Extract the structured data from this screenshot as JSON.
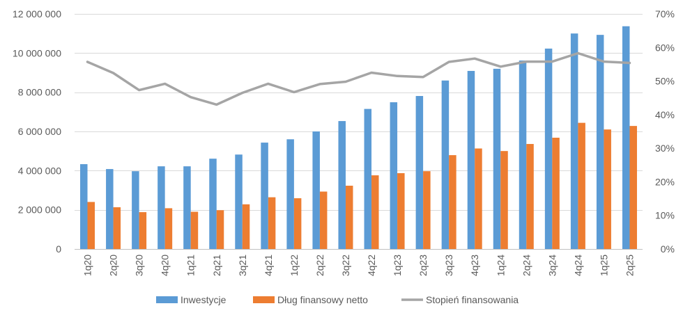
{
  "chart_data": {
    "type": "bar",
    "categories": [
      "1q20",
      "2q20",
      "3q20",
      "4q20",
      "1q21",
      "2q21",
      "3q21",
      "4q21",
      "1q22",
      "2q22",
      "3q22",
      "4q22",
      "1q23",
      "2q23",
      "3q23",
      "4q23",
      "1q24",
      "2q24",
      "3q24",
      "4q24",
      "1q25",
      "2q25"
    ],
    "series": [
      {
        "name": "Inwestycje",
        "type": "bar",
        "axis": "left",
        "color": "#5b9bd5",
        "values": [
          4330000,
          4080000,
          3970000,
          4220000,
          4220000,
          4610000,
          4820000,
          5430000,
          5600000,
          6000000,
          6530000,
          7150000,
          7490000,
          7810000,
          8600000,
          9090000,
          9200000,
          9620000,
          10230000,
          11000000,
          10930000,
          11370000
        ]
      },
      {
        "name": "Dług finansowy netto",
        "type": "bar",
        "axis": "left",
        "color": "#ed7d31",
        "values": [
          2400000,
          2130000,
          1880000,
          2080000,
          1900000,
          1980000,
          2280000,
          2640000,
          2590000,
          2930000,
          3230000,
          3760000,
          3870000,
          3970000,
          4790000,
          5130000,
          5000000,
          5360000,
          5680000,
          6440000,
          6100000,
          6280000
        ]
      },
      {
        "name": "Stopień finansowania",
        "type": "line",
        "axis": "right",
        "color": "#a5a5a5",
        "values": [
          0.557,
          0.524,
          0.473,
          0.492,
          0.452,
          0.43,
          0.465,
          0.492,
          0.467,
          0.491,
          0.498,
          0.525,
          0.515,
          0.512,
          0.557,
          0.567,
          0.543,
          0.558,
          0.558,
          0.583,
          0.558,
          0.554
        ]
      }
    ],
    "y_left": {
      "ylim": [
        0,
        12000000
      ],
      "ticks": [
        0,
        2000000,
        4000000,
        6000000,
        8000000,
        10000000,
        12000000
      ],
      "tick_labels": [
        "0",
        "2 000 000",
        "4 000 000",
        "6 000 000",
        "8 000 000",
        "10 000 000",
        "12 000 000"
      ]
    },
    "y_right": {
      "ylim": [
        0,
        0.7
      ],
      "ticks": [
        0,
        0.1,
        0.2,
        0.3,
        0.4,
        0.5,
        0.6,
        0.7
      ],
      "tick_labels": [
        "0%",
        "10%",
        "20%",
        "30%",
        "40%",
        "50%",
        "60%",
        "70%"
      ]
    },
    "grid": true,
    "legend": "bottom",
    "colors": {
      "grid": "#d9d9d9",
      "text": "#595959",
      "axis": "#bfbfbf"
    }
  }
}
